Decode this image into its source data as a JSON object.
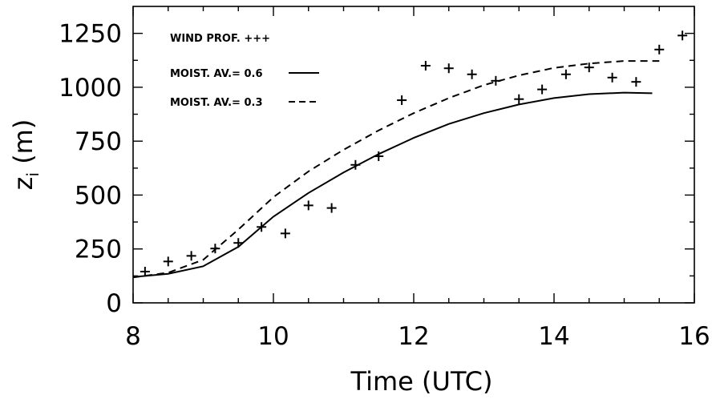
{
  "chart_data": {
    "type": "line",
    "xlabel": "Time (UTC)",
    "ylabel_main": "z",
    "ylabel_sub": "i",
    "ylabel_unit": "(m)",
    "xlim": [
      8,
      16
    ],
    "ylim": [
      0,
      1375
    ],
    "x_ticks": [
      8,
      10,
      12,
      14,
      16
    ],
    "x_tick_labels": [
      "8",
      "10",
      "12",
      "14",
      "16"
    ],
    "y_ticks": [
      0,
      250,
      500,
      750,
      1000,
      1250
    ],
    "y_tick_labels": [
      "0",
      "250",
      "500",
      "750",
      "1000",
      "1250"
    ],
    "grid": false,
    "legend_position": "top-left",
    "series": [
      {
        "name": "WIND PROF. +++",
        "style": "markers",
        "marker": "plus",
        "points": [
          [
            8.17,
            145
          ],
          [
            8.5,
            192
          ],
          [
            8.83,
            218
          ],
          [
            9.17,
            252
          ],
          [
            9.5,
            278
          ],
          [
            9.83,
            352
          ],
          [
            10.17,
            322
          ],
          [
            10.5,
            452
          ],
          [
            10.83,
            440
          ],
          [
            11.17,
            640
          ],
          [
            11.5,
            680
          ],
          [
            11.83,
            940
          ],
          [
            12.17,
            1100
          ],
          [
            12.5,
            1088
          ],
          [
            12.83,
            1060
          ],
          [
            13.17,
            1030
          ],
          [
            13.5,
            945
          ],
          [
            13.83,
            990
          ],
          [
            14.17,
            1060
          ],
          [
            14.5,
            1092
          ],
          [
            14.83,
            1045
          ],
          [
            15.17,
            1025
          ],
          [
            15.5,
            1175
          ],
          [
            15.83,
            1240
          ]
        ]
      },
      {
        "name": "MOIST. AV.= 0.6",
        "style": "solid",
        "points": [
          [
            8.0,
            120
          ],
          [
            8.5,
            135
          ],
          [
            9.0,
            170
          ],
          [
            9.5,
            260
          ],
          [
            10.0,
            400
          ],
          [
            10.5,
            510
          ],
          [
            11.0,
            605
          ],
          [
            11.5,
            690
          ],
          [
            12.0,
            765
          ],
          [
            12.5,
            830
          ],
          [
            13.0,
            880
          ],
          [
            13.5,
            920
          ],
          [
            14.0,
            950
          ],
          [
            14.5,
            968
          ],
          [
            15.0,
            975
          ],
          [
            15.4,
            972
          ]
        ]
      },
      {
        "name": "MOIST. AV.= 0.3",
        "style": "dashed",
        "points": [
          [
            8.0,
            118
          ],
          [
            8.5,
            140
          ],
          [
            9.0,
            200
          ],
          [
            9.5,
            340
          ],
          [
            10.0,
            490
          ],
          [
            10.5,
            610
          ],
          [
            11.0,
            710
          ],
          [
            11.5,
            800
          ],
          [
            12.0,
            880
          ],
          [
            12.5,
            950
          ],
          [
            13.0,
            1010
          ],
          [
            13.5,
            1055
          ],
          [
            14.0,
            1090
          ],
          [
            14.5,
            1110
          ],
          [
            15.0,
            1122
          ],
          [
            15.5,
            1122
          ]
        ]
      }
    ]
  }
}
